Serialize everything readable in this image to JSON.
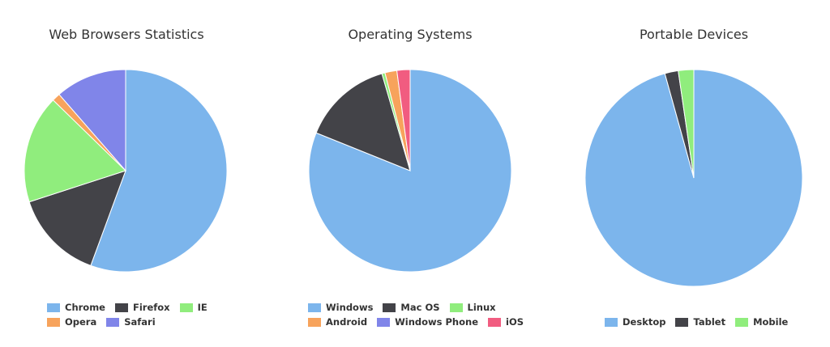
{
  "chart_data": [
    {
      "type": "pie",
      "title": "Web Browsers Statistics",
      "categories": [
        "Chrome",
        "Firefox",
        "IE",
        "Opera",
        "Safari"
      ],
      "values": [
        55.6,
        14.4,
        17.3,
        1.3,
        11.4
      ],
      "colors": [
        "#7cb5ec",
        "#434348",
        "#90ed7d",
        "#f7a35c",
        "#8085e9"
      ],
      "legend_position": "bottom",
      "start_angle": 0
    },
    {
      "type": "pie",
      "title": "Operating Systems",
      "categories": [
        "Windows",
        "Mac OS",
        "Linux",
        "Android",
        "Windows Phone",
        "iOS"
      ],
      "values": [
        81.1,
        14.4,
        0.5,
        1.9,
        0.0,
        2.1
      ],
      "colors": [
        "#7cb5ec",
        "#434348",
        "#90ed7d",
        "#f7a35c",
        "#8085e9",
        "#f15c80"
      ],
      "legend_position": "bottom",
      "start_angle": 0
    },
    {
      "type": "pie",
      "title": "Portable Devices",
      "categories": [
        "Desktop",
        "Tablet",
        "Mobile"
      ],
      "values": [
        95.7,
        2.0,
        2.3
      ],
      "colors": [
        "#7cb5ec",
        "#434348",
        "#90ed7d"
      ],
      "legend_position": "bottom",
      "start_angle": 0
    }
  ],
  "charts": [
    {
      "title": "Web Browsers Statistics",
      "legend_rows": [
        [
          {
            "label": "Chrome",
            "color": "#7cb5ec"
          },
          {
            "label": "Firefox",
            "color": "#434348"
          },
          {
            "label": "IE",
            "color": "#90ed7d"
          }
        ],
        [
          {
            "label": "Opera",
            "color": "#f7a35c"
          },
          {
            "label": "Safari",
            "color": "#8085e9"
          }
        ]
      ]
    },
    {
      "title": "Operating Systems",
      "legend_rows": [
        [
          {
            "label": "Windows",
            "color": "#7cb5ec"
          },
          {
            "label": "Mac OS",
            "color": "#434348"
          },
          {
            "label": "Linux",
            "color": "#90ed7d"
          }
        ],
        [
          {
            "label": "Android",
            "color": "#f7a35c"
          },
          {
            "label": "Windows Phone",
            "color": "#8085e9"
          },
          {
            "label": "iOS",
            "color": "#f15c80"
          }
        ]
      ]
    },
    {
      "title": "Portable Devices",
      "legend_rows": [
        [
          {
            "label": "Desktop",
            "color": "#7cb5ec"
          },
          {
            "label": "Tablet",
            "color": "#434348"
          },
          {
            "label": "Mobile",
            "color": "#90ed7d"
          }
        ]
      ]
    }
  ]
}
